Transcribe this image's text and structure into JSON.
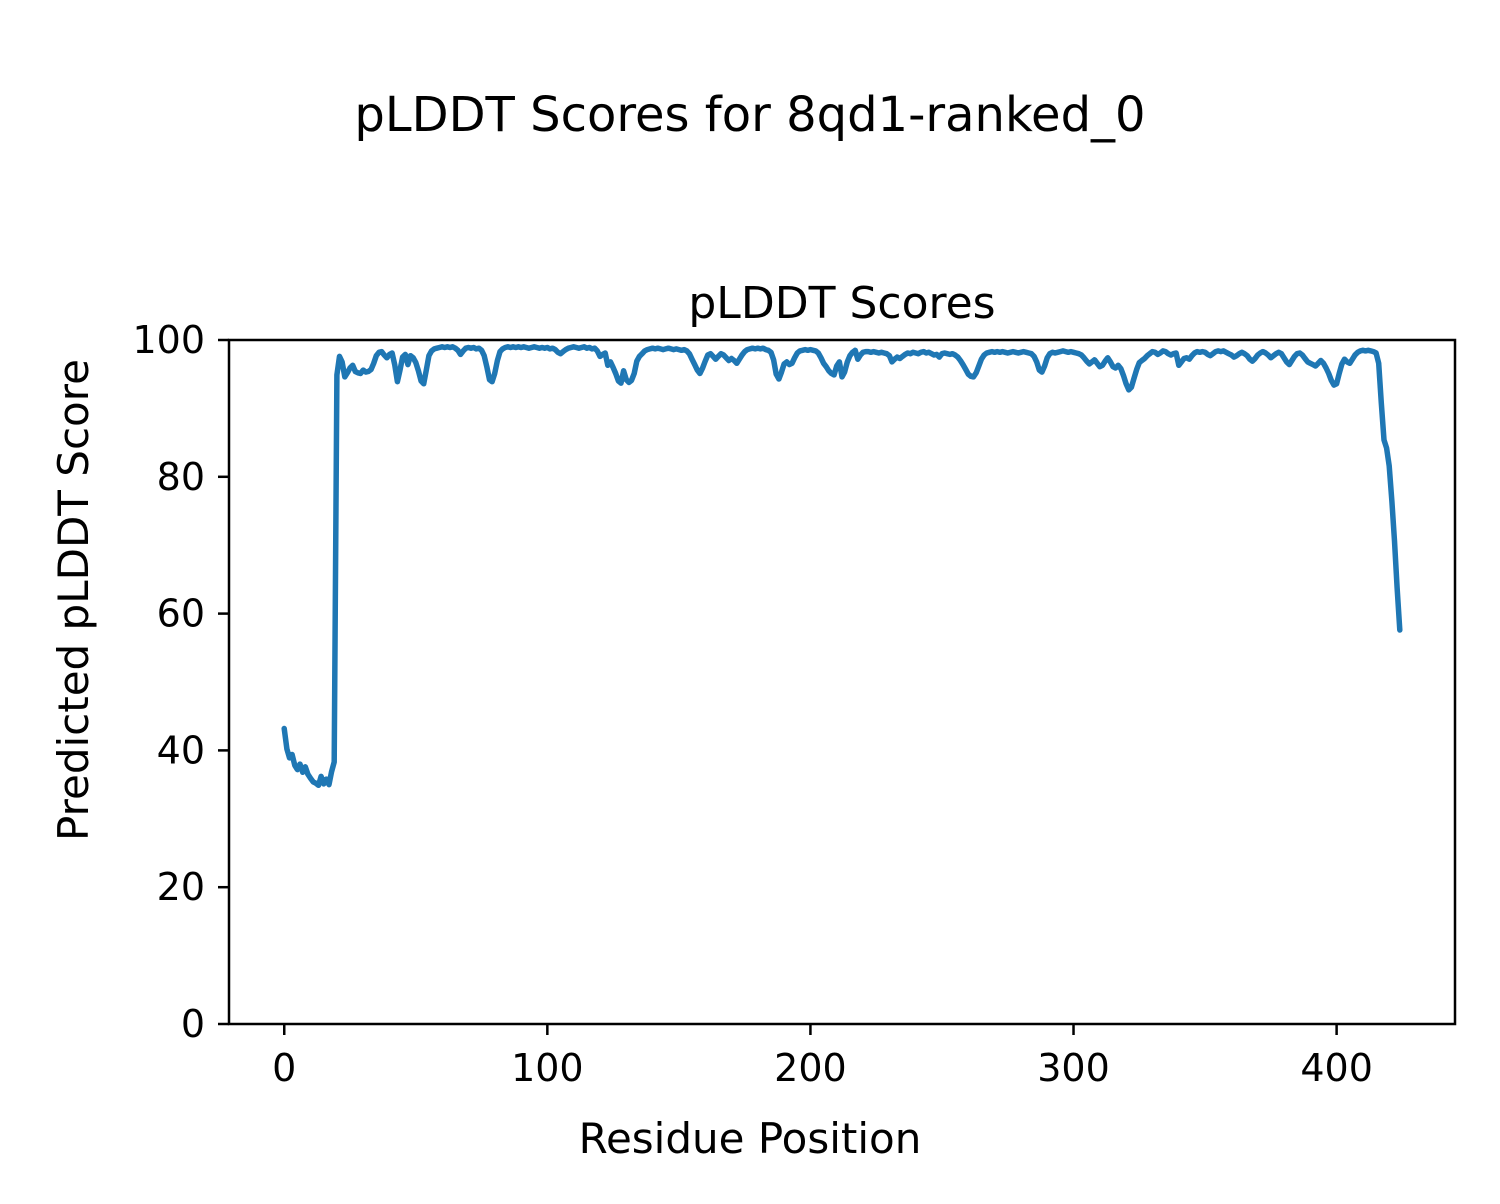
{
  "figure": {
    "title": "pLDDT Scores for 8qd1-ranked_0",
    "background_color": "#ffffff",
    "text_color": "#000000"
  },
  "chart_data": {
    "type": "line",
    "title": "pLDDT Scores",
    "xlabel": "Residue Position",
    "ylabel": "Predicted pLDDT Score",
    "xlim": [
      -21,
      445
    ],
    "ylim": [
      0,
      100
    ],
    "xticks": [
      0,
      100,
      200,
      300,
      400
    ],
    "yticks": [
      0,
      20,
      40,
      60,
      80,
      100
    ],
    "grid": false,
    "legend": "none",
    "line_color": "#1f77b4",
    "line_width": 5.5,
    "series": [
      {
        "name": "pLDDT",
        "x_start": 0,
        "x_step": 1,
        "values": [
          43.2,
          40.2,
          38.9,
          39.4,
          37.8,
          37.2,
          38.0,
          36.8,
          37.6,
          36.5,
          35.9,
          35.4,
          35.2,
          34.9,
          36.2,
          35.1,
          35.8,
          35.0,
          36.9,
          38.3,
          94.9,
          97.6,
          96.8,
          94.6,
          95.2,
          95.9,
          96.3,
          95.4,
          95.2,
          95.1,
          95.6,
          95.3,
          95.4,
          95.7,
          96.6,
          97.7,
          98.2,
          98.3,
          97.8,
          97.4,
          97.9,
          98.1,
          96.4,
          93.9,
          95.6,
          97.5,
          97.9,
          96.4,
          97.7,
          97.4,
          96.7,
          95.5,
          94.0,
          93.6,
          95.6,
          97.7,
          98.4,
          98.7,
          98.8,
          98.9,
          99.0,
          98.9,
          99.0,
          98.9,
          99.0,
          98.8,
          98.5,
          97.9,
          98.4,
          98.8,
          98.9,
          98.8,
          98.9,
          98.7,
          98.8,
          98.5,
          97.7,
          96.1,
          94.2,
          93.9,
          95.1,
          97.0,
          98.3,
          98.7,
          98.9,
          99.0,
          98.9,
          99.0,
          98.9,
          99.0,
          98.9,
          99.0,
          98.9,
          98.8,
          98.9,
          99.0,
          98.9,
          98.8,
          98.9,
          98.8,
          98.9,
          98.7,
          98.8,
          98.6,
          98.2,
          98.0,
          98.3,
          98.6,
          98.8,
          98.9,
          99.0,
          98.9,
          98.8,
          98.9,
          99.0,
          98.8,
          98.9,
          98.7,
          98.8,
          98.4,
          97.6,
          97.9,
          98.1,
          96.3,
          96.8,
          96.0,
          95.1,
          94.0,
          93.7,
          95.5,
          94.2,
          93.8,
          94.1,
          95.1,
          96.9,
          97.6,
          98.0,
          98.4,
          98.6,
          98.7,
          98.8,
          98.7,
          98.8,
          98.7,
          98.6,
          98.7,
          98.8,
          98.7,
          98.6,
          98.7,
          98.6,
          98.5,
          98.6,
          98.4,
          98.0,
          97.2,
          96.4,
          95.6,
          95.1,
          95.9,
          96.9,
          97.8,
          98.0,
          97.6,
          97.2,
          97.6,
          98.0,
          97.8,
          97.4,
          97.0,
          97.3,
          97.0,
          96.6,
          97.2,
          97.8,
          98.3,
          98.6,
          98.7,
          98.8,
          98.7,
          98.8,
          98.7,
          98.8,
          98.6,
          98.5,
          98.2,
          97.1,
          95.0,
          94.3,
          95.3,
          96.5,
          96.8,
          96.4,
          96.6,
          97.4,
          98.1,
          98.4,
          98.5,
          98.6,
          98.5,
          98.6,
          98.5,
          98.4,
          98.1,
          97.4,
          96.6,
          96.1,
          95.5,
          95.1,
          94.9,
          96.2,
          96.8,
          94.6,
          95.3,
          96.8,
          97.7,
          98.2,
          98.5,
          97.2,
          97.8,
          98.2,
          98.3,
          98.3,
          98.2,
          98.3,
          98.2,
          98.1,
          98.2,
          98.1,
          98.0,
          97.7,
          96.8,
          97.2,
          97.5,
          97.3,
          97.6,
          97.9,
          98.1,
          98.0,
          98.2,
          98.1,
          98.0,
          98.2,
          98.3,
          98.1,
          98.2,
          98.0,
          97.8,
          97.9,
          97.5,
          98.0,
          98.1,
          98.0,
          97.9,
          98.0,
          97.8,
          97.5,
          97.0,
          96.4,
          95.7,
          95.0,
          94.7,
          94.6,
          95.2,
          96.2,
          97.2,
          97.8,
          98.1,
          98.2,
          98.3,
          98.2,
          98.3,
          98.2,
          98.3,
          98.2,
          98.1,
          98.2,
          98.3,
          98.2,
          98.1,
          98.2,
          98.3,
          98.2,
          98.1,
          98.0,
          97.6,
          96.8,
          95.6,
          95.3,
          96.2,
          97.4,
          98.0,
          98.2,
          98.1,
          98.2,
          98.3,
          98.4,
          98.3,
          98.2,
          98.3,
          98.2,
          98.1,
          98.0,
          97.8,
          97.4,
          96.9,
          96.5,
          96.8,
          97.1,
          96.6,
          96.1,
          96.3,
          96.9,
          97.4,
          96.8,
          96.1,
          95.9,
          96.3,
          95.8,
          94.8,
          93.6,
          92.7,
          93.1,
          94.4,
          95.7,
          96.7,
          97.0,
          97.3,
          97.7,
          98.0,
          98.3,
          98.2,
          97.9,
          98.1,
          98.4,
          98.3,
          98.0,
          97.8,
          98.0,
          98.1,
          96.3,
          96.8,
          97.3,
          97.4,
          97.2,
          97.7,
          98.1,
          98.3,
          98.2,
          98.3,
          98.2,
          97.9,
          97.7,
          98.0,
          98.3,
          98.4,
          98.3,
          98.4,
          98.2,
          98.0,
          97.8,
          97.5,
          97.7,
          98.0,
          98.2,
          98.0,
          97.7,
          97.2,
          96.9,
          97.3,
          97.8,
          98.1,
          98.3,
          98.1,
          97.8,
          97.4,
          97.7,
          98.0,
          98.2,
          98.0,
          97.4,
          96.8,
          96.4,
          97.0,
          97.6,
          98.0,
          98.1,
          97.8,
          97.3,
          96.8,
          96.6,
          96.4,
          96.2,
          96.6,
          97.0,
          96.6,
          95.9,
          95.1,
          94.1,
          93.4,
          93.6,
          95.1,
          96.5,
          97.2,
          96.8,
          96.6,
          97.2,
          97.8,
          98.2,
          98.4,
          98.5,
          98.4,
          98.5,
          98.4,
          98.3,
          98.1,
          96.6,
          90.8,
          85.4,
          84.2,
          81.6,
          76.4,
          70.6,
          63.8,
          57.6
        ]
      }
    ]
  }
}
